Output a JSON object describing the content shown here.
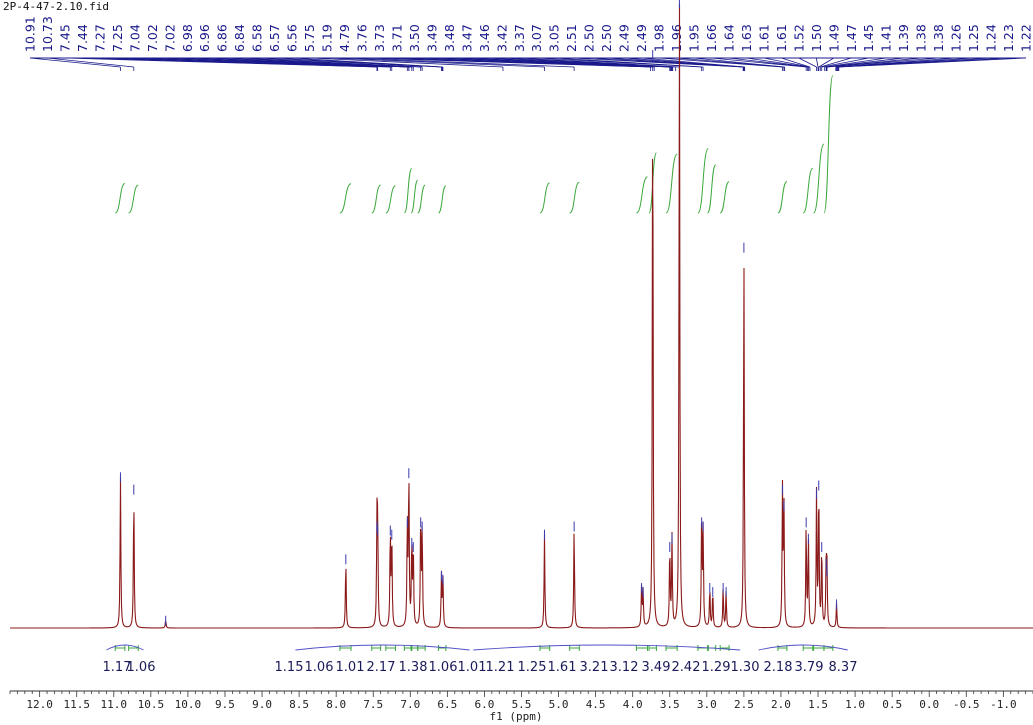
{
  "chart_data": {
    "type": "line",
    "title": "2P-4-47-2.10.fid",
    "xlabel": "f1 (ppm)",
    "ylabel": "",
    "xlim": [
      12.4,
      -1.4
    ],
    "ylim": [
      0,
      1
    ],
    "grid": false,
    "legend": "none",
    "x_ticks": [
      "12.0",
      "11.5",
      "11.0",
      "10.5",
      "10.0",
      "9.5",
      "9.0",
      "8.5",
      "8.0",
      "7.5",
      "7.0",
      "6.5",
      "6.0",
      "5.5",
      "5.0",
      "4.5",
      "4.0",
      "3.5",
      "3.0",
      "2.5",
      "2.0",
      "1.5",
      "1.0",
      "0.5",
      "0.0",
      "-0.5",
      "-1.0"
    ],
    "x_tick_values": [
      12.0,
      11.5,
      11.0,
      10.5,
      10.0,
      9.5,
      9.0,
      8.5,
      8.0,
      7.5,
      7.0,
      6.5,
      6.0,
      5.5,
      5.0,
      4.5,
      4.0,
      3.5,
      3.0,
      2.5,
      2.0,
      1.5,
      1.0,
      0.5,
      0.0,
      -0.5,
      -1.0
    ],
    "peak_labels": [
      "10.91",
      "10.73",
      "7.45",
      "7.44",
      "7.27",
      "7.25",
      "7.04",
      "7.02",
      "7.02",
      "6.98",
      "6.96",
      "6.86",
      "6.84",
      "6.58",
      "6.57",
      "6.56",
      "5.75",
      "5.19",
      "4.79",
      "3.76",
      "3.73",
      "3.71",
      "3.50",
      "3.49",
      "3.48",
      "3.47",
      "3.46",
      "3.42",
      "3.37",
      "3.07",
      "3.05",
      "2.51",
      "2.50",
      "2.50",
      "2.49",
      "2.49",
      "1.98",
      "1.96",
      "1.95",
      "1.66",
      "1.64",
      "1.63",
      "1.61",
      "1.61",
      "1.52",
      "1.50",
      "1.49",
      "1.47",
      "1.45",
      "1.41",
      "1.39",
      "1.38",
      "1.38",
      "1.26",
      "1.25",
      "1.24",
      "1.23",
      "1.22"
    ],
    "integrals": [
      "1.17",
      "1.06",
      "1.15",
      "1.06",
      "1.01",
      "2.17",
      "1.38",
      "1.06",
      "1.01",
      "1.21",
      "1.25",
      "1.61",
      "3.21",
      "3.12",
      "3.49",
      "2.42",
      "1.29",
      "1.30",
      "2.18",
      "3.79",
      "8.37"
    ],
    "peaks": [
      {
        "ppm": 10.91,
        "height": 0.37
      },
      {
        "ppm": 10.73,
        "height": 0.34
      },
      {
        "ppm": 10.3,
        "height": 0.02
      },
      {
        "ppm": 7.87,
        "height": 0.17
      },
      {
        "ppm": 7.45,
        "height": 0.25
      },
      {
        "ppm": 7.44,
        "height": 0.24
      },
      {
        "ppm": 7.27,
        "height": 0.24
      },
      {
        "ppm": 7.25,
        "height": 0.23
      },
      {
        "ppm": 7.04,
        "height": 0.26
      },
      {
        "ppm": 7.02,
        "height": 0.38
      },
      {
        "ppm": 6.98,
        "height": 0.21
      },
      {
        "ppm": 6.96,
        "height": 0.2
      },
      {
        "ppm": 6.86,
        "height": 0.26
      },
      {
        "ppm": 6.84,
        "height": 0.25
      },
      {
        "ppm": 6.58,
        "height": 0.13
      },
      {
        "ppm": 6.56,
        "height": 0.12
      },
      {
        "ppm": 5.19,
        "height": 0.23
      },
      {
        "ppm": 4.79,
        "height": 0.25
      },
      {
        "ppm": 3.88,
        "height": 0.1
      },
      {
        "ppm": 3.86,
        "height": 0.09
      },
      {
        "ppm": 3.73,
        "height": 1.4
      },
      {
        "ppm": 3.5,
        "height": 0.2
      },
      {
        "ppm": 3.47,
        "height": 0.22
      },
      {
        "ppm": 3.37,
        "height": 1.6
      },
      {
        "ppm": 3.07,
        "height": 0.26
      },
      {
        "ppm": 3.05,
        "height": 0.25
      },
      {
        "ppm": 2.96,
        "height": 0.1
      },
      {
        "ppm": 2.92,
        "height": 0.09
      },
      {
        "ppm": 2.78,
        "height": 0.1
      },
      {
        "ppm": 2.74,
        "height": 0.09
      },
      {
        "ppm": 2.5,
        "height": 0.93
      },
      {
        "ppm": 1.98,
        "height": 0.34
      },
      {
        "ppm": 1.96,
        "height": 0.3
      },
      {
        "ppm": 1.66,
        "height": 0.26
      },
      {
        "ppm": 1.63,
        "height": 0.22
      },
      {
        "ppm": 1.52,
        "height": 0.33
      },
      {
        "ppm": 1.49,
        "height": 0.35
      },
      {
        "ppm": 1.45,
        "height": 0.2
      },
      {
        "ppm": 1.39,
        "height": 0.16
      },
      {
        "ppm": 1.38,
        "height": 0.14
      },
      {
        "ppm": 1.25,
        "height": 0.06
      }
    ],
    "colors": {
      "spectrum": "#8b1a1a",
      "labels": "#1a1a8c",
      "integral": "#3aa83a",
      "axis": "#333333"
    }
  }
}
